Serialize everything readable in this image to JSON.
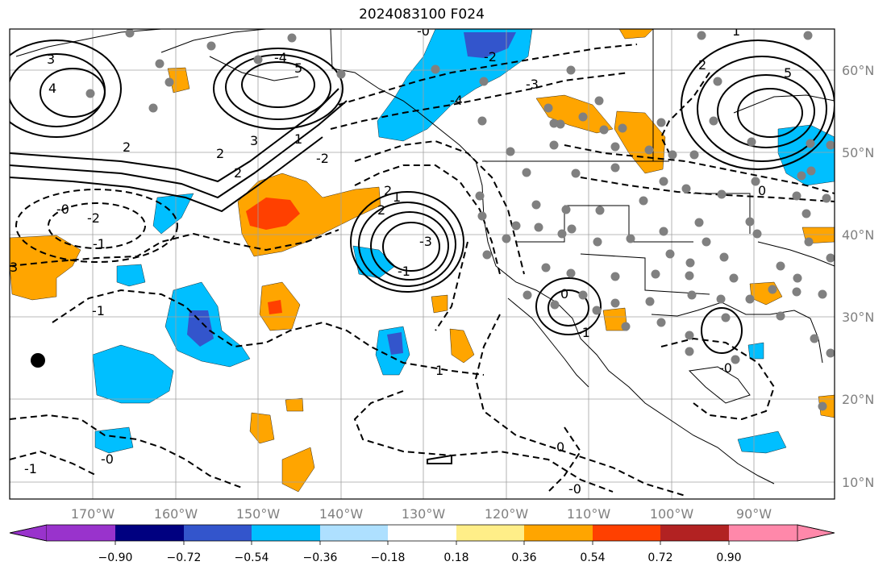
{
  "title": "2024083100 F024",
  "lat_labels": [
    "60°N",
    "50°N",
    "40°N",
    "30°N",
    "20°N",
    "10°N"
  ],
  "lon_labels": [
    "170°W",
    "160°W",
    "150°W",
    "140°W",
    "130°W",
    "120°W",
    "110°W",
    "100°W",
    "90°W"
  ],
  "colorbar": {
    "tick_labels": [
      "−0.90",
      "−0.72",
      "−0.54",
      "−0.36",
      "−0.18",
      "0.18",
      "0.36",
      "0.54",
      "0.72",
      "0.90"
    ],
    "colors": [
      "#9933cc",
      "#000080",
      "#3355cc",
      "#00bfff",
      "#aee0ff",
      "#ffffff",
      "#ffee88",
      "#ffa500",
      "#ff4000",
      "#b22222",
      "#ff88aa"
    ]
  },
  "colors": {
    "ocean": "#ffffff",
    "grid": "#a0a0a0",
    "contour": "#000000",
    "station": "#808080"
  },
  "contour_labels": [
    "3",
    "4",
    "2",
    "-4",
    "5",
    "-2",
    "3",
    "2",
    "-3",
    "-4",
    "1",
    "2",
    "-2",
    "2",
    "1",
    "2",
    "-3",
    "-1",
    "-2",
    "-1",
    "-1",
    "-0",
    "3",
    "1",
    "-1",
    "-0",
    "0",
    "-1",
    "0",
    "-0",
    "-0",
    "5",
    "2",
    "0",
    "1",
    "-0"
  ]
}
